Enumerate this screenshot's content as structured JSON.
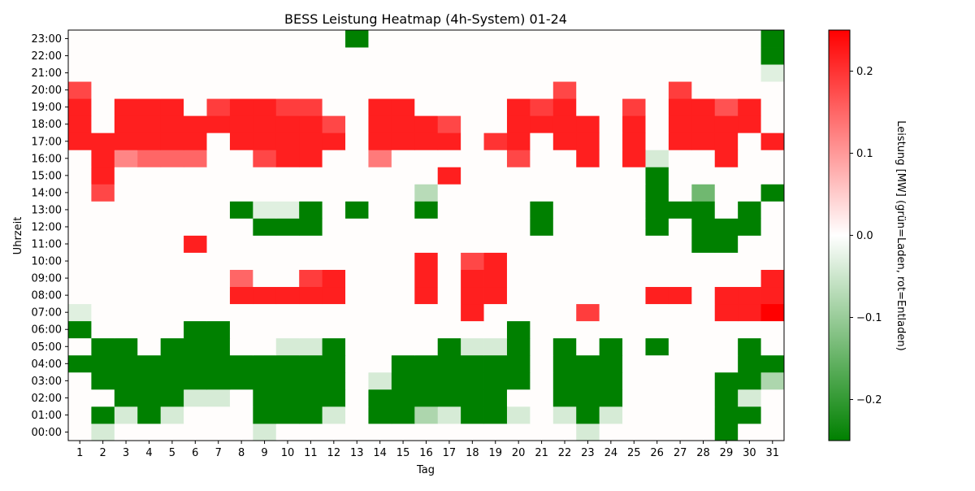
{
  "chart_data": {
    "type": "heatmap",
    "title": "BESS Leistung Heatmap (4h-System) 01-24",
    "xlabel": "Tag",
    "ylabel": "Uhrzeit",
    "colorbar_label": "Leistung [MW] (grün=Laden, rot=Entladen)",
    "x_categories": [
      "1",
      "2",
      "3",
      "4",
      "5",
      "6",
      "7",
      "8",
      "9",
      "10",
      "11",
      "12",
      "13",
      "14",
      "15",
      "16",
      "17",
      "18",
      "19",
      "20",
      "21",
      "22",
      "23",
      "24",
      "25",
      "26",
      "27",
      "28",
      "29",
      "30",
      "31"
    ],
    "y_categories": [
      "00:00",
      "01:00",
      "02:00",
      "03:00",
      "04:00",
      "05:00",
      "06:00",
      "07:00",
      "08:00",
      "09:00",
      "10:00",
      "11:00",
      "12:00",
      "13:00",
      "14:00",
      "15:00",
      "16:00",
      "17:00",
      "18:00",
      "19:00",
      "20:00",
      "21:00",
      "22:00",
      "23:00"
    ],
    "value_range": [
      -0.25,
      0.25
    ],
    "colorbar_ticks": [
      -0.2,
      -0.1,
      0.0,
      0.1,
      0.2
    ],
    "colorbar_tick_labels": [
      "−0.2",
      "−0.1",
      "0.0",
      "0.1",
      "0.2"
    ],
    "colormap": [
      "#008000",
      "#ffffff",
      "#ff0000"
    ],
    "background_color": "#fffdfc",
    "values": [
      [
        0,
        -0.04,
        0,
        0,
        0,
        0,
        0,
        0,
        -0.04,
        0,
        0,
        0,
        0,
        0,
        0,
        0,
        0,
        0,
        0,
        0,
        0,
        0,
        -0.04,
        0,
        0,
        0,
        0,
        0,
        -0.25,
        0,
        0
      ],
      [
        0,
        -0.25,
        -0.04,
        -0.25,
        -0.04,
        0,
        0,
        0,
        -0.25,
        -0.25,
        -0.25,
        -0.04,
        0,
        -0.25,
        -0.25,
        -0.08,
        -0.04,
        -0.25,
        -0.25,
        -0.04,
        0,
        -0.04,
        -0.25,
        -0.04,
        0,
        0,
        0,
        0,
        -0.25,
        -0.25,
        0
      ],
      [
        0,
        0,
        -0.25,
        -0.25,
        -0.25,
        -0.04,
        -0.04,
        0,
        -0.25,
        -0.25,
        -0.25,
        -0.25,
        0,
        -0.25,
        -0.25,
        -0.25,
        -0.25,
        -0.25,
        -0.25,
        0,
        0,
        -0.25,
        -0.25,
        -0.25,
        0,
        0,
        0,
        0,
        -0.25,
        -0.04,
        0
      ],
      [
        0,
        -0.25,
        -0.25,
        -0.25,
        -0.25,
        -0.25,
        -0.25,
        -0.25,
        -0.25,
        -0.25,
        -0.25,
        -0.25,
        0,
        -0.04,
        -0.25,
        -0.25,
        -0.25,
        -0.25,
        -0.25,
        -0.25,
        0,
        -0.25,
        -0.25,
        -0.25,
        0,
        0,
        0,
        0,
        -0.25,
        -0.25,
        -0.08
      ],
      [
        -0.25,
        -0.25,
        -0.25,
        -0.25,
        -0.25,
        -0.25,
        -0.25,
        -0.25,
        -0.25,
        -0.25,
        -0.25,
        -0.25,
        0,
        0,
        -0.25,
        -0.25,
        -0.25,
        -0.25,
        -0.25,
        -0.25,
        0,
        -0.25,
        -0.25,
        -0.25,
        0,
        0,
        0,
        0,
        0,
        -0.25,
        -0.25
      ],
      [
        0,
        -0.25,
        -0.25,
        0,
        -0.25,
        -0.25,
        -0.25,
        0,
        0,
        -0.04,
        -0.04,
        -0.25,
        0,
        0,
        0,
        0,
        -0.25,
        -0.04,
        -0.04,
        -0.25,
        0,
        -0.25,
        0,
        -0.25,
        0,
        -0.25,
        0,
        0,
        0,
        -0.25,
        0
      ],
      [
        -0.25,
        0,
        0,
        0,
        0,
        -0.25,
        -0.25,
        0,
        0,
        0,
        0,
        0,
        0,
        0,
        0,
        0,
        0,
        0,
        0,
        -0.25,
        0,
        0,
        0,
        0,
        0,
        0,
        0,
        0,
        0,
        0,
        0
      ],
      [
        -0.03,
        0,
        0,
        0,
        0,
        0,
        0,
        0,
        0,
        0,
        0,
        0,
        0,
        0,
        0,
        0,
        0,
        0.22,
        0,
        0,
        0,
        0,
        0.19,
        0,
        0,
        0,
        0,
        0,
        0.22,
        0.22,
        0.25
      ],
      [
        0,
        0,
        0,
        0,
        0,
        0,
        0,
        0.22,
        0.22,
        0.22,
        0.22,
        0.22,
        0,
        0,
        0,
        0.22,
        0,
        0.22,
        0.22,
        0,
        0,
        0,
        0,
        0,
        0,
        0.22,
        0.22,
        0,
        0.22,
        0.22,
        0.22
      ],
      [
        0,
        0,
        0,
        0,
        0,
        0,
        0,
        0.15,
        0,
        0,
        0.19,
        0.22,
        0,
        0,
        0,
        0.22,
        0,
        0.22,
        0.22,
        0,
        0,
        0,
        0,
        0,
        0,
        0,
        0,
        0,
        0,
        0,
        0.22
      ],
      [
        0,
        0,
        0,
        0,
        0,
        0,
        0,
        0,
        0,
        0,
        0,
        0,
        0,
        0,
        0,
        0.22,
        0,
        0.18,
        0.22,
        0,
        0,
        0,
        0,
        0,
        0,
        0,
        0,
        0,
        0,
        0,
        0
      ],
      [
        0,
        0,
        0,
        0,
        0,
        0.22,
        0,
        0,
        0,
        0,
        0,
        0,
        0,
        0,
        0,
        0,
        0,
        0,
        0,
        0,
        0,
        0,
        0,
        0,
        0,
        0,
        0,
        -0.25,
        -0.25,
        0,
        0
      ],
      [
        0,
        0,
        0,
        0,
        0,
        0,
        0,
        0,
        -0.25,
        -0.25,
        -0.25,
        0,
        0,
        0,
        0,
        0,
        0,
        0,
        0,
        0,
        -0.25,
        0,
        0,
        0,
        0,
        -0.25,
        0,
        -0.25,
        -0.25,
        -0.25,
        0
      ],
      [
        0,
        0,
        0,
        0,
        0,
        0,
        0,
        -0.25,
        -0.03,
        -0.03,
        -0.25,
        0,
        -0.25,
        0,
        0,
        -0.25,
        0,
        0,
        0,
        0,
        -0.25,
        0,
        0,
        0,
        0,
        -0.25,
        -0.25,
        -0.25,
        0,
        -0.25,
        0
      ],
      [
        0,
        0.18,
        0,
        0,
        0,
        0,
        0,
        0,
        0,
        0,
        0,
        0,
        0,
        0,
        0,
        -0.07,
        0,
        0,
        0,
        0,
        0,
        0,
        0,
        0,
        0,
        -0.25,
        0,
        -0.14,
        0,
        0,
        -0.25
      ],
      [
        0,
        0.22,
        0,
        0,
        0,
        0,
        0,
        0,
        0,
        0,
        0,
        0,
        0,
        0,
        0,
        0,
        0.22,
        0,
        0,
        0,
        0,
        0,
        0,
        0,
        0,
        -0.25,
        0,
        0,
        0,
        0,
        0
      ],
      [
        0,
        0.22,
        0.12,
        0.15,
        0.15,
        0.15,
        0,
        0,
        0.18,
        0.22,
        0.22,
        0,
        0,
        0.13,
        0,
        0,
        0,
        0,
        0,
        0.18,
        0,
        0,
        0.22,
        0,
        0.22,
        -0.04,
        0,
        0,
        0.22,
        0,
        0
      ],
      [
        0.22,
        0.22,
        0.22,
        0.22,
        0.22,
        0.22,
        0,
        0.22,
        0.22,
        0.22,
        0.22,
        0.22,
        0,
        0.22,
        0.22,
        0.22,
        0.22,
        0,
        0.2,
        0.22,
        0,
        0.22,
        0.22,
        0,
        0.22,
        0,
        0.22,
        0.22,
        0.22,
        0,
        0.22
      ],
      [
        0.22,
        0,
        0.22,
        0.22,
        0.22,
        0.22,
        0.22,
        0.22,
        0.22,
        0.22,
        0.22,
        0.18,
        0,
        0.22,
        0.22,
        0.22,
        0.18,
        0,
        0,
        0.22,
        0.22,
        0.22,
        0.22,
        0,
        0.22,
        0,
        0.22,
        0.22,
        0.22,
        0.22,
        0
      ],
      [
        0.22,
        0,
        0.22,
        0.22,
        0.22,
        0,
        0.19,
        0.22,
        0.22,
        0.19,
        0.19,
        0,
        0,
        0.22,
        0.22,
        0,
        0,
        0,
        0,
        0.22,
        0.19,
        0.22,
        0,
        0,
        0.19,
        0,
        0.22,
        0.22,
        0.17,
        0.22,
        0
      ],
      [
        0.18,
        0,
        0,
        0,
        0,
        0,
        0,
        0,
        0,
        0,
        0,
        0,
        0,
        0,
        0,
        0,
        0,
        0,
        0,
        0,
        0,
        0.18,
        0,
        0,
        0,
        0,
        0.19,
        0,
        0,
        0,
        0
      ],
      [
        0,
        0,
        0,
        0,
        0,
        0,
        0,
        0,
        0,
        0,
        0,
        0,
        0,
        0,
        0,
        0,
        0,
        0,
        0,
        0,
        0,
        0,
        0,
        0,
        0,
        0,
        0,
        0,
        0,
        0,
        -0.03
      ],
      [
        0,
        0,
        0,
        0,
        0,
        0,
        0,
        0,
        0,
        0,
        0,
        0,
        0,
        0,
        0,
        0,
        0,
        0,
        0,
        0,
        0,
        0,
        0,
        0,
        0,
        0,
        0,
        0,
        0,
        0,
        -0.25
      ],
      [
        0,
        0,
        0,
        0,
        0,
        0,
        0,
        0,
        0,
        0,
        0,
        0,
        -0.25,
        0,
        0,
        0,
        0,
        0,
        0,
        0,
        0,
        0,
        0,
        0,
        0,
        0,
        0,
        0,
        0,
        0,
        -0.25
      ]
    ]
  }
}
